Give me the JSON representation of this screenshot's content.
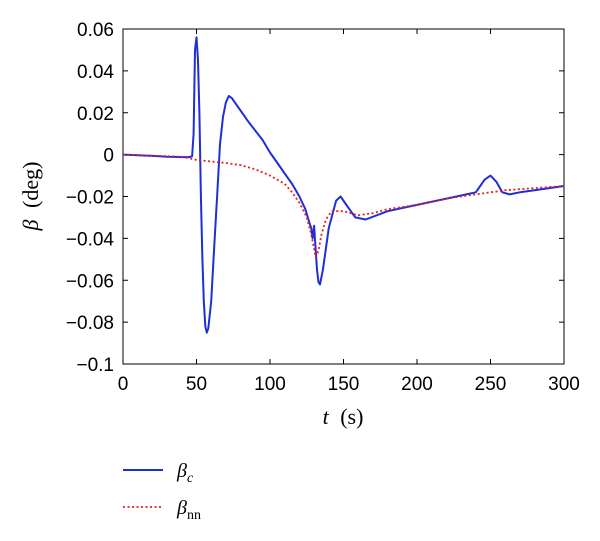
{
  "chart_data": {
    "type": "line",
    "xlabel_var": "t",
    "xlabel_unit": "(s)",
    "ylabel_var": "β",
    "ylabel_unit": "(deg)",
    "xlim": [
      0,
      300
    ],
    "ylim": [
      -0.1,
      0.06
    ],
    "xticks": [
      0,
      50,
      100,
      150,
      200,
      250,
      300
    ],
    "yticks": [
      0.06,
      0.04,
      0.02,
      0,
      -0.02,
      -0.04,
      -0.06,
      -0.08,
      -0.1
    ],
    "xtick_labels": [
      "0",
      "50",
      "100",
      "150",
      "200",
      "250",
      "300"
    ],
    "ytick_labels": [
      "0.06",
      "0.04",
      "0.02",
      "0",
      "−0.02",
      "−0.04",
      "−0.06",
      "−0.08",
      "−0.1"
    ],
    "grid": false,
    "legend_position": "below",
    "series": [
      {
        "name_base": "β",
        "name_sub": "c",
        "color": "#1f2fd6",
        "style": "solid",
        "x": [
          0,
          10,
          20,
          30,
          40,
          45,
          47,
          48,
          49,
          50,
          51,
          52,
          53,
          54,
          55,
          56,
          57,
          58,
          60,
          62,
          64,
          66,
          68,
          70,
          72,
          74,
          78,
          85,
          95,
          100,
          105,
          110,
          115,
          120,
          124,
          127,
          128,
          129,
          130,
          131,
          132,
          133,
          134,
          136,
          140,
          145,
          148,
          152,
          158,
          165,
          180,
          200,
          220,
          240,
          246,
          250,
          254,
          258,
          263,
          270,
          280,
          290,
          300
        ],
        "y": [
          0,
          -0.0003,
          -0.0006,
          -0.001,
          -0.0012,
          -0.0012,
          -0.0008,
          0.01,
          0.05,
          0.056,
          0.045,
          0.02,
          -0.02,
          -0.05,
          -0.07,
          -0.082,
          -0.085,
          -0.083,
          -0.07,
          -0.045,
          -0.02,
          0.005,
          0.018,
          0.025,
          0.028,
          0.027,
          0.023,
          0.016,
          0.007,
          0.001,
          -0.004,
          -0.009,
          -0.014,
          -0.02,
          -0.026,
          -0.033,
          -0.035,
          -0.04,
          -0.034,
          -0.045,
          -0.055,
          -0.061,
          -0.062,
          -0.055,
          -0.035,
          -0.022,
          -0.02,
          -0.024,
          -0.03,
          -0.031,
          -0.027,
          -0.024,
          -0.021,
          -0.018,
          -0.012,
          -0.01,
          -0.013,
          -0.018,
          -0.019,
          -0.018,
          -0.017,
          -0.016,
          -0.015
        ]
      },
      {
        "name_base": "β",
        "name_sub": "nn",
        "color": "#e02020",
        "style": "dotted",
        "x": [
          0,
          20,
          40,
          50,
          60,
          70,
          80,
          90,
          100,
          110,
          115,
          120,
          125,
          128,
          130,
          131,
          133,
          135,
          138,
          142,
          150,
          160,
          170,
          180,
          200,
          220,
          240,
          260,
          280,
          300
        ],
        "y": [
          0,
          -0.0005,
          -0.001,
          -0.0025,
          -0.0033,
          -0.004,
          -0.005,
          -0.007,
          -0.01,
          -0.014,
          -0.018,
          -0.023,
          -0.03,
          -0.038,
          -0.045,
          -0.049,
          -0.046,
          -0.038,
          -0.031,
          -0.027,
          -0.027,
          -0.029,
          -0.028,
          -0.026,
          -0.024,
          -0.021,
          -0.019,
          -0.017,
          -0.016,
          -0.015
        ]
      }
    ]
  }
}
